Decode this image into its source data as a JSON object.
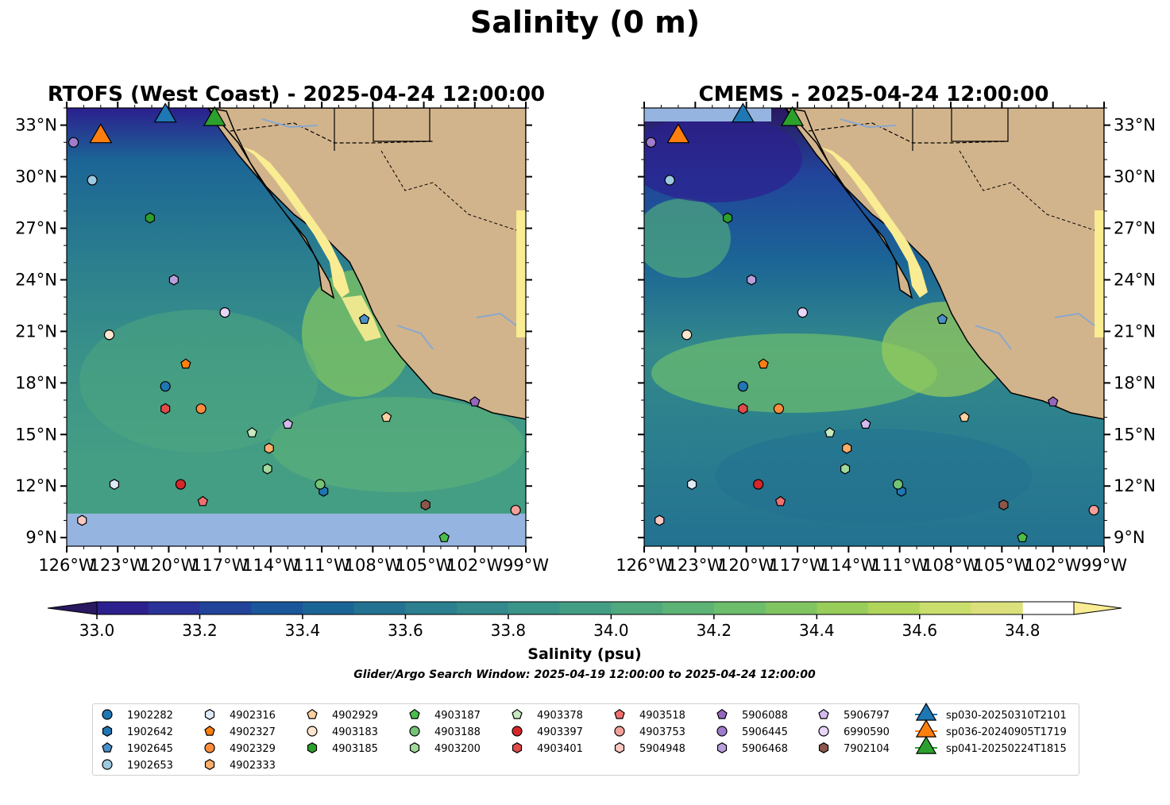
{
  "figure": {
    "suptitle": "Salinity (0 m)"
  },
  "panels": [
    {
      "id": "rtofs",
      "title": "RTOFS (West Coast) - 2025-04-24 12:00:00",
      "tick_side": "left"
    },
    {
      "id": "cmems",
      "title": "CMEMS - 2025-04-24 12:00:00",
      "tick_side": "right"
    }
  ],
  "colorbar": {
    "label": "Salinity (psu)",
    "search_window": "Glider/Argo Search Window: 2025-04-19 12:00:00 to 2025-04-24 12:00:00",
    "min": 32.9,
    "max": 34.9,
    "step": 0.1,
    "ticks": [
      "33.0",
      "33.2",
      "33.4",
      "33.6",
      "33.8",
      "34.0",
      "34.2",
      "34.4",
      "34.6",
      "34.8"
    ],
    "colors": [
      "#2a1861",
      "#2c1f8e",
      "#2a3299",
      "#21449a",
      "#1a5699",
      "#1b6596",
      "#237291",
      "#2b7f8e",
      "#33898b",
      "#3b9488",
      "#449e84",
      "#4fa87e",
      "#5db376",
      "#6cbd6c",
      "#80c462",
      "#98cd5a",
      "#b0d55a",
      "#c9de6c",
      "#dbe07c",
      "#f9ec92"
    ]
  },
  "chart_data": [
    {
      "type": "map",
      "panel": "RTOFS (West Coast) - 2025-04-24 12:00:00",
      "variable": "Salinity (0 m)",
      "units": "psu",
      "extent_lon": [
        -126,
        -99
      ],
      "extent_lat": [
        8.5,
        34
      ],
      "x_ticks": [
        "126°W",
        "123°W",
        "120°W",
        "117°W",
        "114°W",
        "111°W",
        "108°W",
        "105°W",
        "102°W",
        "99°W"
      ],
      "y_ticks": [
        "9°N",
        "12°N",
        "15°N",
        "18°N",
        "21°N",
        "24°N",
        "27°N",
        "30°N",
        "33°N"
      ],
      "no_data_band_lat": [
        8.5,
        10.2
      ]
    },
    {
      "type": "map",
      "panel": "CMEMS - 2025-04-24 12:00:00",
      "variable": "Salinity (0 m)",
      "units": "psu",
      "extent_lon": [
        -126,
        -99
      ],
      "extent_lat": [
        8.5,
        34
      ],
      "x_ticks": [
        "126°W",
        "123°W",
        "120°W",
        "117°W",
        "114°W",
        "111°W",
        "108°W",
        "105°W",
        "102°W",
        "99°W"
      ],
      "y_ticks": [
        "9°N",
        "12°N",
        "15°N",
        "18°N",
        "21°N",
        "24°N",
        "27°N",
        "30°N",
        "33°N"
      ]
    }
  ],
  "platforms": [
    {
      "id": "1902282",
      "marker": "circle",
      "color": "#1f77b4",
      "lon": -120.2,
      "lat": 17.8
    },
    {
      "id": "1902642",
      "marker": "hexagon",
      "color": "#1f77b4",
      "lon": -110.9,
      "lat": 11.7
    },
    {
      "id": "1902645",
      "marker": "pentagon",
      "color": "#4a90c8",
      "lon": -108.5,
      "lat": 21.7
    },
    {
      "id": "1902653",
      "marker": "circle",
      "color": "#9ecae1",
      "lon": -124.5,
      "lat": 29.8
    },
    {
      "id": "4902316",
      "marker": "hexagon",
      "color": "#deebf7",
      "lon": -123.2,
      "lat": 12.1
    },
    {
      "id": "4902327",
      "marker": "pentagon",
      "color": "#ff7f0e",
      "lon": -119.0,
      "lat": 19.1
    },
    {
      "id": "4902329",
      "marker": "circle",
      "color": "#fd8d3c",
      "lon": -118.1,
      "lat": 16.5
    },
    {
      "id": "4902333",
      "marker": "hexagon",
      "color": "#fdae6b",
      "lon": -114.1,
      "lat": 14.2
    },
    {
      "id": "4902929",
      "marker": "pentagon",
      "color": "#fdd0a2",
      "lon": -107.2,
      "lat": 16.0
    },
    {
      "id": "4903183",
      "marker": "circle",
      "color": "#fee6ce",
      "lon": -123.5,
      "lat": 20.8
    },
    {
      "id": "4903185",
      "marker": "hexagon",
      "color": "#2ca02c",
      "lon": -121.1,
      "lat": 27.6
    },
    {
      "id": "4903187",
      "marker": "pentagon",
      "color": "#4bbd4b",
      "lon": -103.8,
      "lat": 9.0
    },
    {
      "id": "4903188",
      "marker": "circle",
      "color": "#74c476",
      "lon": -111.1,
      "lat": 12.1
    },
    {
      "id": "4903200",
      "marker": "hexagon",
      "color": "#a1d99b",
      "lon": -114.2,
      "lat": 13.0
    },
    {
      "id": "4903378",
      "marker": "pentagon",
      "color": "#c7e9c0",
      "lon": -115.1,
      "lat": 15.1
    },
    {
      "id": "4903397",
      "marker": "circle",
      "color": "#d62728",
      "lon": -119.3,
      "lat": 12.1
    },
    {
      "id": "4903401",
      "marker": "hexagon",
      "color": "#e34a4a",
      "lon": -120.2,
      "lat": 16.5
    },
    {
      "id": "4903518",
      "marker": "pentagon",
      "color": "#f07070",
      "lon": -118.0,
      "lat": 11.1
    },
    {
      "id": "4903753",
      "marker": "circle",
      "color": "#f4a09a",
      "lon": -99.6,
      "lat": 10.6
    },
    {
      "id": "5904948",
      "marker": "hexagon",
      "color": "#fcc8c2",
      "lon": -125.1,
      "lat": 10.0
    },
    {
      "id": "5906088",
      "marker": "pentagon",
      "color": "#9467bd",
      "lon": -102.0,
      "lat": 16.9
    },
    {
      "id": "5906445",
      "marker": "circle",
      "color": "#a07ccc",
      "lon": -125.6,
      "lat": 32.0
    },
    {
      "id": "5906468",
      "marker": "hexagon",
      "color": "#b9a0dc",
      "lon": -119.7,
      "lat": 24.0
    },
    {
      "id": "5906797",
      "marker": "pentagon",
      "color": "#d4baf0",
      "lon": -113.0,
      "lat": 15.6
    },
    {
      "id": "6990590",
      "marker": "circle",
      "color": "#e8d6f8",
      "lon": -116.7,
      "lat": 22.1
    },
    {
      "id": "7902104",
      "marker": "hexagon",
      "color": "#8c564b",
      "lon": -104.9,
      "lat": 10.9
    },
    {
      "id": "sp030-20250310T2101",
      "marker": "triangle",
      "color": "#1f77b4",
      "lon": -120.2,
      "lat": 33.7
    },
    {
      "id": "sp036-20240905T1719",
      "marker": "triangle",
      "color": "#ff7f0e",
      "lon": -124.0,
      "lat": 32.5
    },
    {
      "id": "sp041-20250224T1815",
      "marker": "triangle",
      "color": "#2ca02c",
      "lon": -117.3,
      "lat": 33.5
    }
  ],
  "legend_columns": [
    [
      "1902282",
      "1902642",
      "1902645",
      "1902653"
    ],
    [
      "4902316",
      "4902327",
      "4902329",
      "4902333"
    ],
    [
      "4902929",
      "4903183",
      "4903185"
    ],
    [
      "4903187",
      "4903188",
      "4903200"
    ],
    [
      "4903378",
      "4903397",
      "4903401"
    ],
    [
      "4903518",
      "4903753",
      "5904948"
    ],
    [
      "5906088",
      "5906445",
      "5906468"
    ],
    [
      "5906797",
      "6990590",
      "7902104"
    ],
    [
      "sp030-20250310T2101",
      "sp036-20240905T1719",
      "sp041-20250224T1815"
    ]
  ],
  "land_color": "#d2b48c",
  "nodata_color": "#96b4e0"
}
